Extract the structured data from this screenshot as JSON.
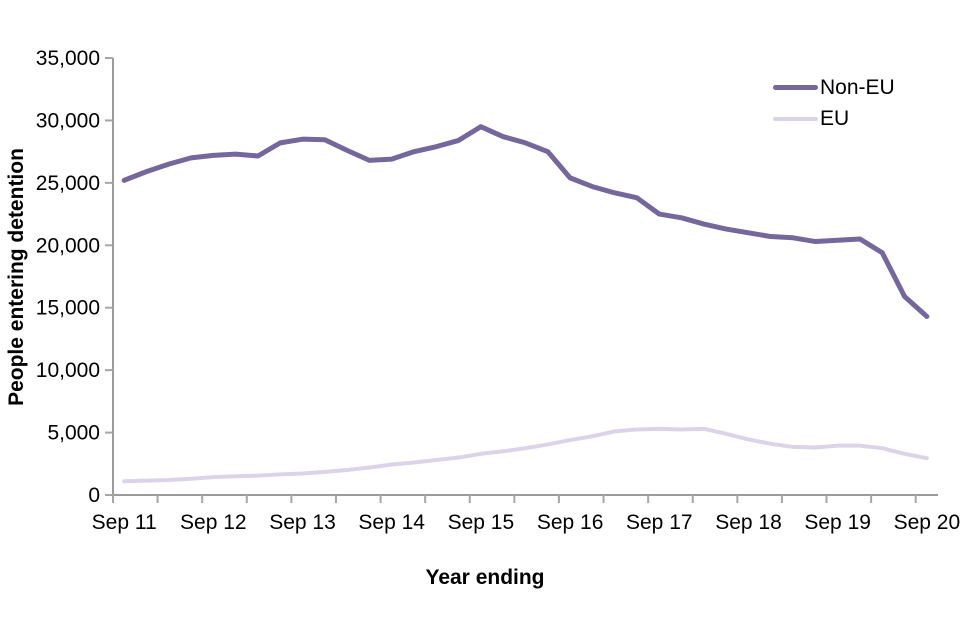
{
  "figure": {
    "background": "#ffffff",
    "text_color": "#000000"
  },
  "chart_data": {
    "type": "line",
    "title": "",
    "xlabel": "Year ending",
    "ylabel": "People entering detention",
    "ylim": [
      0,
      35000
    ],
    "grid": false,
    "legend_position": "top-right",
    "axis_color": "#9B9B9B",
    "tick_color": "#A6A6A6",
    "y_ticks": [
      0,
      5000,
      10000,
      15000,
      20000,
      25000,
      30000,
      35000
    ],
    "y_tick_labels": [
      "0",
      "5,000",
      "10,000",
      "15,000",
      "20,000",
      "25,000",
      "30,000",
      "35,000"
    ],
    "x_tick_labels": [
      "Sep 11",
      "Sep 12",
      "Sep 13",
      "Sep 14",
      "Sep 15",
      "Sep 16",
      "Sep 17",
      "Sep 18",
      "Sep 19",
      "Sep 20"
    ],
    "x_note": "quarterly points, 4 per labelled year",
    "series": [
      {
        "name": "Non-EU",
        "color": "#75679C",
        "line_width": 5,
        "values": [
          25200,
          25900,
          26500,
          27000,
          27200,
          27300,
          27150,
          28200,
          28500,
          28450,
          27600,
          26800,
          26900,
          27500,
          27900,
          28400,
          29500,
          28700,
          28200,
          27500,
          25400,
          24700,
          24200,
          23800,
          22500,
          22200,
          21700,
          21300,
          21000,
          20700,
          20600,
          20300,
          20400,
          20500,
          19400,
          15900,
          14300
        ]
      },
      {
        "name": "EU",
        "color": "#DBD3E9",
        "line_width": 4,
        "values": [
          1100,
          1150,
          1200,
          1300,
          1430,
          1500,
          1550,
          1650,
          1720,
          1850,
          2000,
          2200,
          2440,
          2600,
          2800,
          3000,
          3300,
          3500,
          3750,
          4050,
          4400,
          4700,
          5100,
          5250,
          5300,
          5250,
          5300,
          4900,
          4450,
          4100,
          3850,
          3800,
          3950,
          3950,
          3750,
          3300,
          2950
        ]
      }
    ]
  }
}
